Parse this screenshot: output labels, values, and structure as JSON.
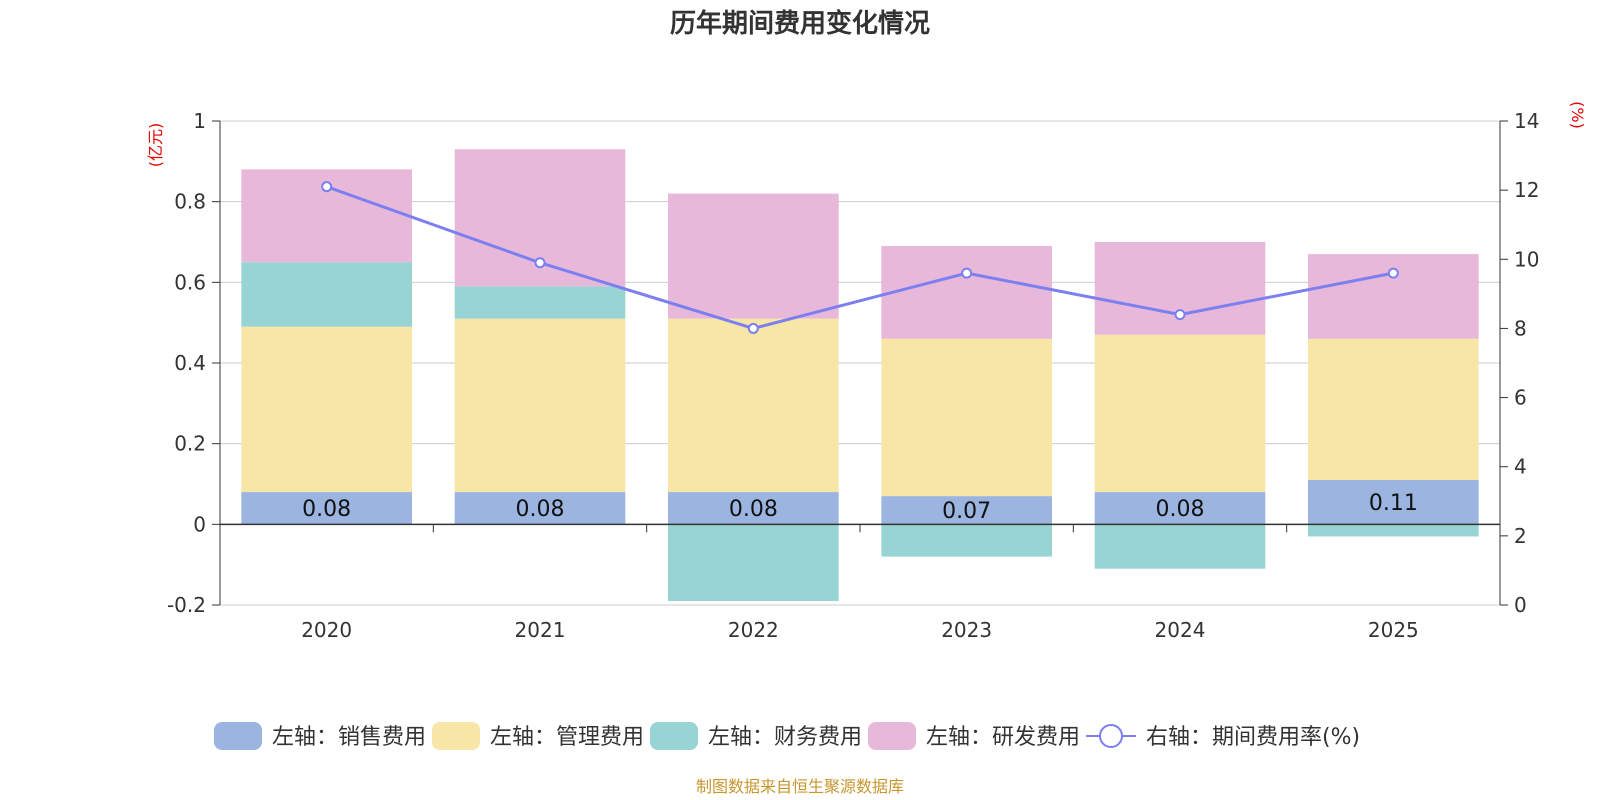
{
  "chart_data": {
    "type": "bar",
    "title": "历年期间费用变化情况",
    "categories": [
      "2020",
      "2021",
      "2022",
      "2023",
      "2024",
      "2025"
    ],
    "left_axis": {
      "unit": "(亿元)",
      "ylim": [
        -0.2,
        1.0
      ],
      "ticks": [
        "1",
        "0.8",
        "0.6",
        "0.4",
        "0.2",
        "0",
        "-0.2"
      ]
    },
    "right_axis": {
      "unit": "(%)",
      "ylim": [
        0,
        14
      ],
      "ticks": [
        "14",
        "12",
        "10",
        "8",
        "6",
        "4",
        "2",
        "0"
      ]
    },
    "series": [
      {
        "name": "左轴：销售费用",
        "axis": "left",
        "kind": "bar",
        "color": "#9bb5e0",
        "values": [
          0.08,
          0.08,
          0.08,
          0.07,
          0.08,
          0.11
        ],
        "labels": [
          "0.08",
          "0.08",
          "0.08",
          "0.07",
          "0.08",
          "0.11"
        ]
      },
      {
        "name": "左轴：管理费用",
        "axis": "left",
        "kind": "bar",
        "color": "#f8e6a6",
        "values": [
          0.41,
          0.43,
          0.43,
          0.39,
          0.39,
          0.35
        ]
      },
      {
        "name": "左轴：财务费用",
        "axis": "left",
        "kind": "bar",
        "color": "#97d4d3",
        "values": [
          0.16,
          0.08,
          -0.19,
          -0.08,
          -0.11,
          -0.03
        ]
      },
      {
        "name": "左轴：研发费用",
        "axis": "left",
        "kind": "bar",
        "color": "#e8b8da",
        "values": [
          0.23,
          0.34,
          0.31,
          0.23,
          0.23,
          0.21
        ]
      },
      {
        "name": "右轴：期间费用率(%)",
        "axis": "right",
        "kind": "line",
        "color": "#7b7ff0",
        "values": [
          12.1,
          9.9,
          8.0,
          9.6,
          8.4,
          9.6
        ]
      }
    ]
  },
  "source": "制图数据来自恒生聚源数据库"
}
